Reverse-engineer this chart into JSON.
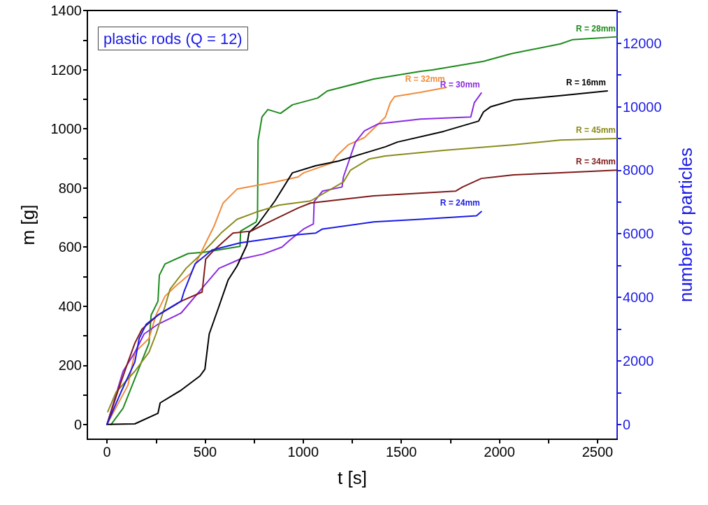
{
  "chart_data": {
    "type": "line",
    "xlabel": "t [s]",
    "ylabel": "m [g]",
    "y2label": "number of particles",
    "annotations": [
      "plastic rods (Q = 12)"
    ],
    "xlim": [
      -100,
      2600
    ],
    "xticks": [
      0,
      {
        "value": 250,
        "label": null
      },
      500,
      {
        "value": 750,
        "label": null
      },
      1000,
      {
        "value": 1250,
        "label": null
      },
      1500,
      {
        "value": 1750,
        "label": null
      },
      2000,
      {
        "value": 2250,
        "label": null
      },
      2500
    ],
    "ylim": [
      -50,
      1400
    ],
    "yticks": [
      0,
      {
        "value": 100,
        "label": null
      },
      200,
      {
        "value": 300,
        "label": null
      },
      400,
      {
        "value": 500,
        "label": null
      },
      600,
      {
        "value": 700,
        "label": null
      },
      800,
      {
        "value": 900,
        "label": null
      },
      1000,
      {
        "value": 1100,
        "label": null
      },
      1200,
      {
        "value": 1300,
        "label": null
      },
      1400
    ],
    "y2lim": [
      -470,
      13030
    ],
    "y2ticks": [
      0,
      {
        "value": 1000,
        "label": null
      },
      2000,
      {
        "value": 3000,
        "label": null
      },
      4000,
      {
        "value": 5000,
        "label": null
      },
      6000,
      {
        "value": 7000,
        "label": null
      },
      8000,
      {
        "value": 9000,
        "label": null
      },
      10000,
      {
        "value": 11000,
        "label": null
      },
      12000,
      {
        "value": 13000,
        "label": null
      }
    ],
    "grid": false,
    "legend": false,
    "marker": "none",
    "line_style": "solid",
    "series": [
      {
        "name": "R = 28mm",
        "color": "#1e8a1e",
        "x": [
          21,
          82,
          214,
          225,
          260,
          267,
          296,
          414,
          499,
          678,
          681,
          760,
          767,
          770,
          790,
          820,
          884,
          945,
          1074,
          1123,
          1359,
          1598,
          1658,
          1918,
          2061,
          2311,
          2371,
          2600
        ],
        "values": [
          0,
          55,
          275,
          370,
          417,
          505,
          543,
          578,
          583,
          602,
          654,
          685,
          700,
          960,
          1040,
          1065,
          1052,
          1081,
          1104,
          1128,
          1168,
          1194,
          1199,
          1228,
          1254,
          1287,
          1301,
          1311
        ]
      },
      {
        "name": "R = 32mm",
        "color": "#f08c3c",
        "x": [
          0,
          107,
          142,
          214,
          250,
          296,
          357,
          428,
          510,
          546,
          592,
          663,
          856,
          974,
          1002,
          1145,
          1170,
          1230,
          1312,
          1384,
          1419,
          1444,
          1466,
          1598,
          1730
        ],
        "values": [
          0,
          133,
          244,
          291,
          370,
          434,
          472,
          512,
          623,
          671,
          749,
          796,
          820,
          837,
          851,
          884,
          908,
          946,
          970,
          1017,
          1040,
          1088,
          1109,
          1123,
          1140
        ]
      },
      {
        "name": "R = 30mm",
        "color": "#8a2be2",
        "x": [
          0,
          82,
          142,
          189,
          260,
          378,
          499,
          571,
          678,
          795,
          892,
          931,
          1002,
          1052,
          1056,
          1098,
          1198,
          1205,
          1266,
          1312,
          1384,
          1598,
          1854,
          1872,
          1908
        ],
        "values": [
          0,
          180,
          244,
          306,
          339,
          377,
          472,
          528,
          559,
          576,
          600,
          623,
          661,
          678,
          754,
          789,
          803,
          837,
          955,
          993,
          1017,
          1033,
          1040,
          1088,
          1121
        ]
      },
      {
        "name": "R = 16mm",
        "color": "#000000",
        "x": [
          0,
          142,
          260,
          271,
          378,
          474,
          499,
          521,
          571,
          617,
          663,
          713,
          724,
          770,
          856,
          945,
          1063,
          1180,
          1419,
          1480,
          1715,
          1894,
          1919,
          1954,
          2072,
          2311,
          2550
        ],
        "values": [
          0,
          2,
          38,
          73,
          116,
          164,
          187,
          306,
          400,
          488,
          536,
          607,
          649,
          678,
          756,
          851,
          875,
          891,
          939,
          955,
          991,
          1026,
          1057,
          1074,
          1097,
          1112,
          1128
        ]
      },
      {
        "name": "R = 45mm",
        "color": "#8b8b1e",
        "x": [
          4,
          46,
          142,
          214,
          250,
          296,
          321,
          403,
          464,
          535,
          581,
          663,
          760,
          877,
          1038,
          1205,
          1241,
          1337,
          1419,
          1715,
          2072,
          2311,
          2600
        ],
        "values": [
          43,
          109,
          180,
          244,
          306,
          400,
          457,
          528,
          566,
          614,
          647,
          694,
          718,
          742,
          756,
          820,
          860,
          898,
          908,
          927,
          946,
          962,
          967
        ]
      },
      {
        "name": "R = 34mm",
        "color": "#7f1a1a",
        "x": [
          0,
          57,
          107,
          142,
          178,
          260,
          378,
          485,
          503,
          546,
          642,
          735,
          806,
          974,
          1038,
          1359,
          1776,
          1812,
          1908,
          2072,
          2311,
          2600
        ],
        "values": [
          0,
          116,
          211,
          275,
          322,
          370,
          417,
          448,
          559,
          590,
          647,
          654,
          678,
          732,
          749,
          773,
          789,
          803,
          832,
          844,
          851,
          860
        ]
      },
      {
        "name": "R = 24mm",
        "color": "#1a1ae6",
        "x": [
          0,
          71,
          142,
          164,
          200,
          260,
          378,
          392,
          449,
          535,
          678,
          974,
          1063,
          1098,
          1359,
          1598,
          1883,
          1908
        ],
        "values": [
          0,
          109,
          211,
          291,
          339,
          370,
          417,
          448,
          543,
          590,
          614,
          642,
          647,
          661,
          685,
          694,
          706,
          720
        ]
      }
    ]
  }
}
